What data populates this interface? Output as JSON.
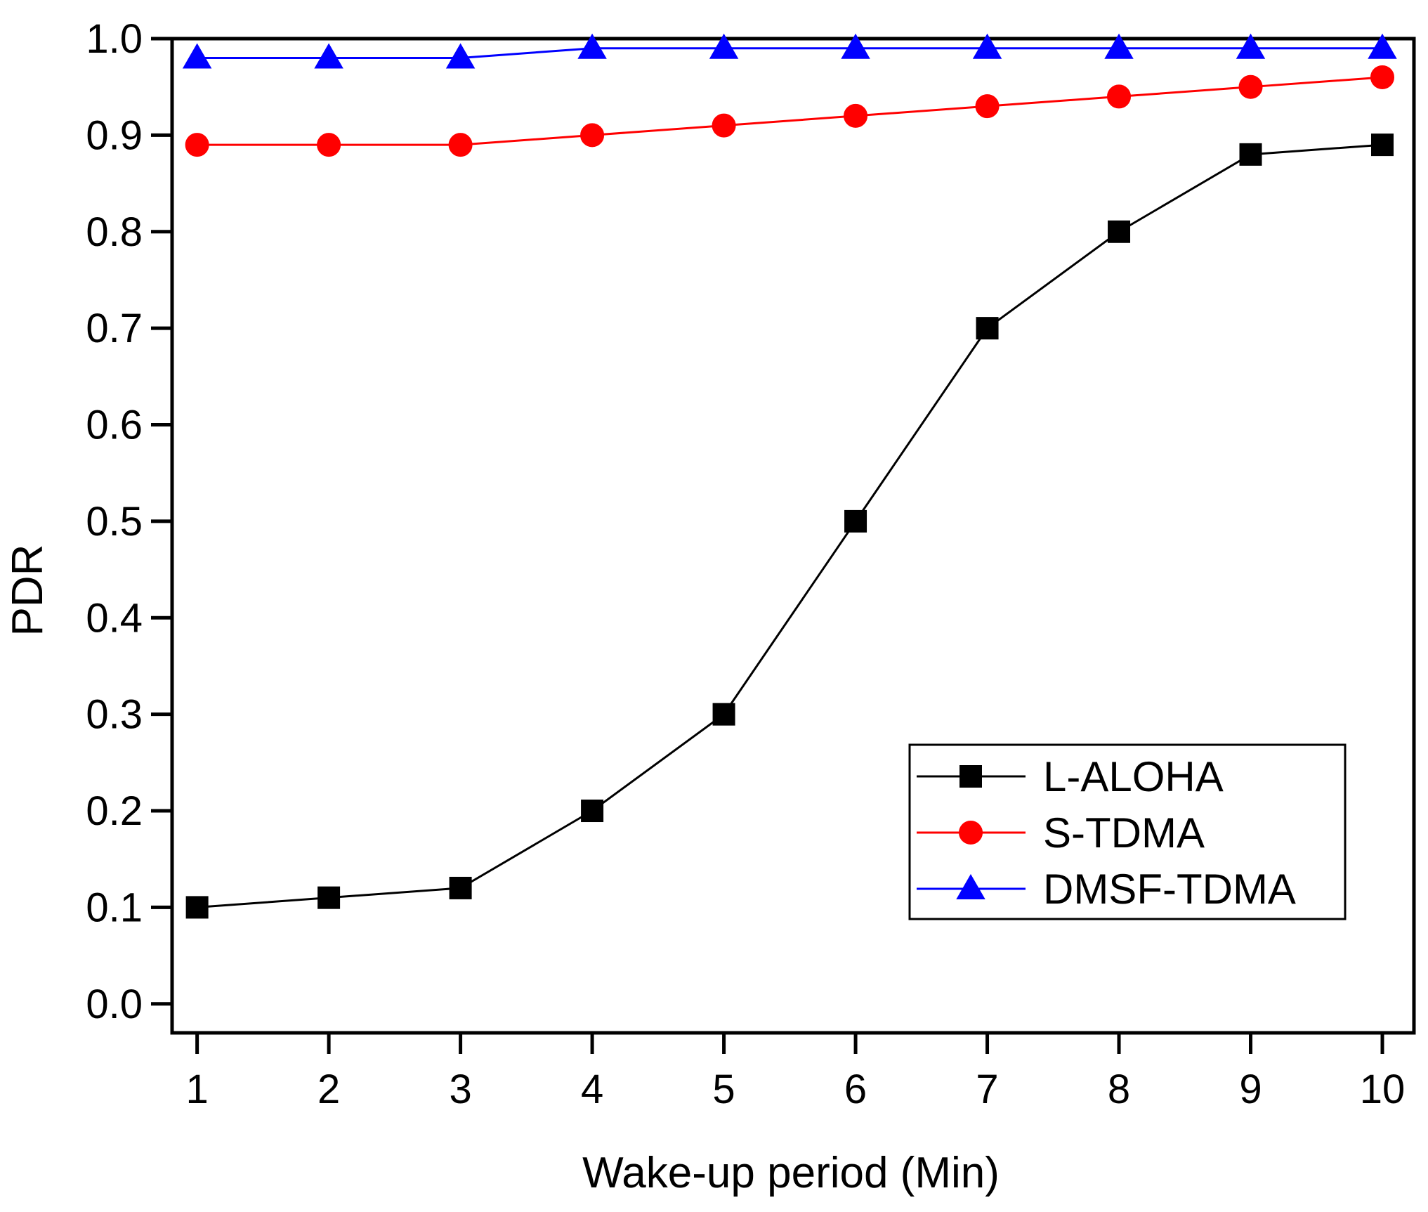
{
  "chart_data": {
    "type": "line",
    "title": "",
    "xlabel": "Wake-up period (Min)",
    "ylabel": "PDR",
    "x": [
      1,
      2,
      3,
      4,
      5,
      6,
      7,
      8,
      9,
      10
    ],
    "xlim": [
      0.81,
      10.24
    ],
    "ylim": [
      -0.03,
      1.0
    ],
    "xticks": [
      "1",
      "2",
      "3",
      "4",
      "5",
      "6",
      "7",
      "8",
      "9",
      "10"
    ],
    "yticks": [
      "0.0",
      "0.1",
      "0.2",
      "0.3",
      "0.4",
      "0.5",
      "0.6",
      "0.7",
      "0.8",
      "0.9",
      "1.0"
    ],
    "grid": false,
    "legend_position": "bottom-right",
    "series": [
      {
        "name": "L-ALOHA",
        "color": "#000000",
        "marker": "square",
        "values": [
          0.1,
          0.11,
          0.12,
          0.2,
          0.3,
          0.5,
          0.7,
          0.8,
          0.88,
          0.89
        ]
      },
      {
        "name": "S-TDMA",
        "color": "#ff0000",
        "marker": "circle",
        "values": [
          0.89,
          0.89,
          0.89,
          0.9,
          0.91,
          0.92,
          0.93,
          0.94,
          0.95,
          0.96
        ]
      },
      {
        "name": "DMSF-TDMA",
        "color": "#0000ff",
        "marker": "triangle",
        "values": [
          0.98,
          0.98,
          0.98,
          0.99,
          0.99,
          0.99,
          0.99,
          0.99,
          0.99,
          0.99
        ]
      }
    ]
  }
}
